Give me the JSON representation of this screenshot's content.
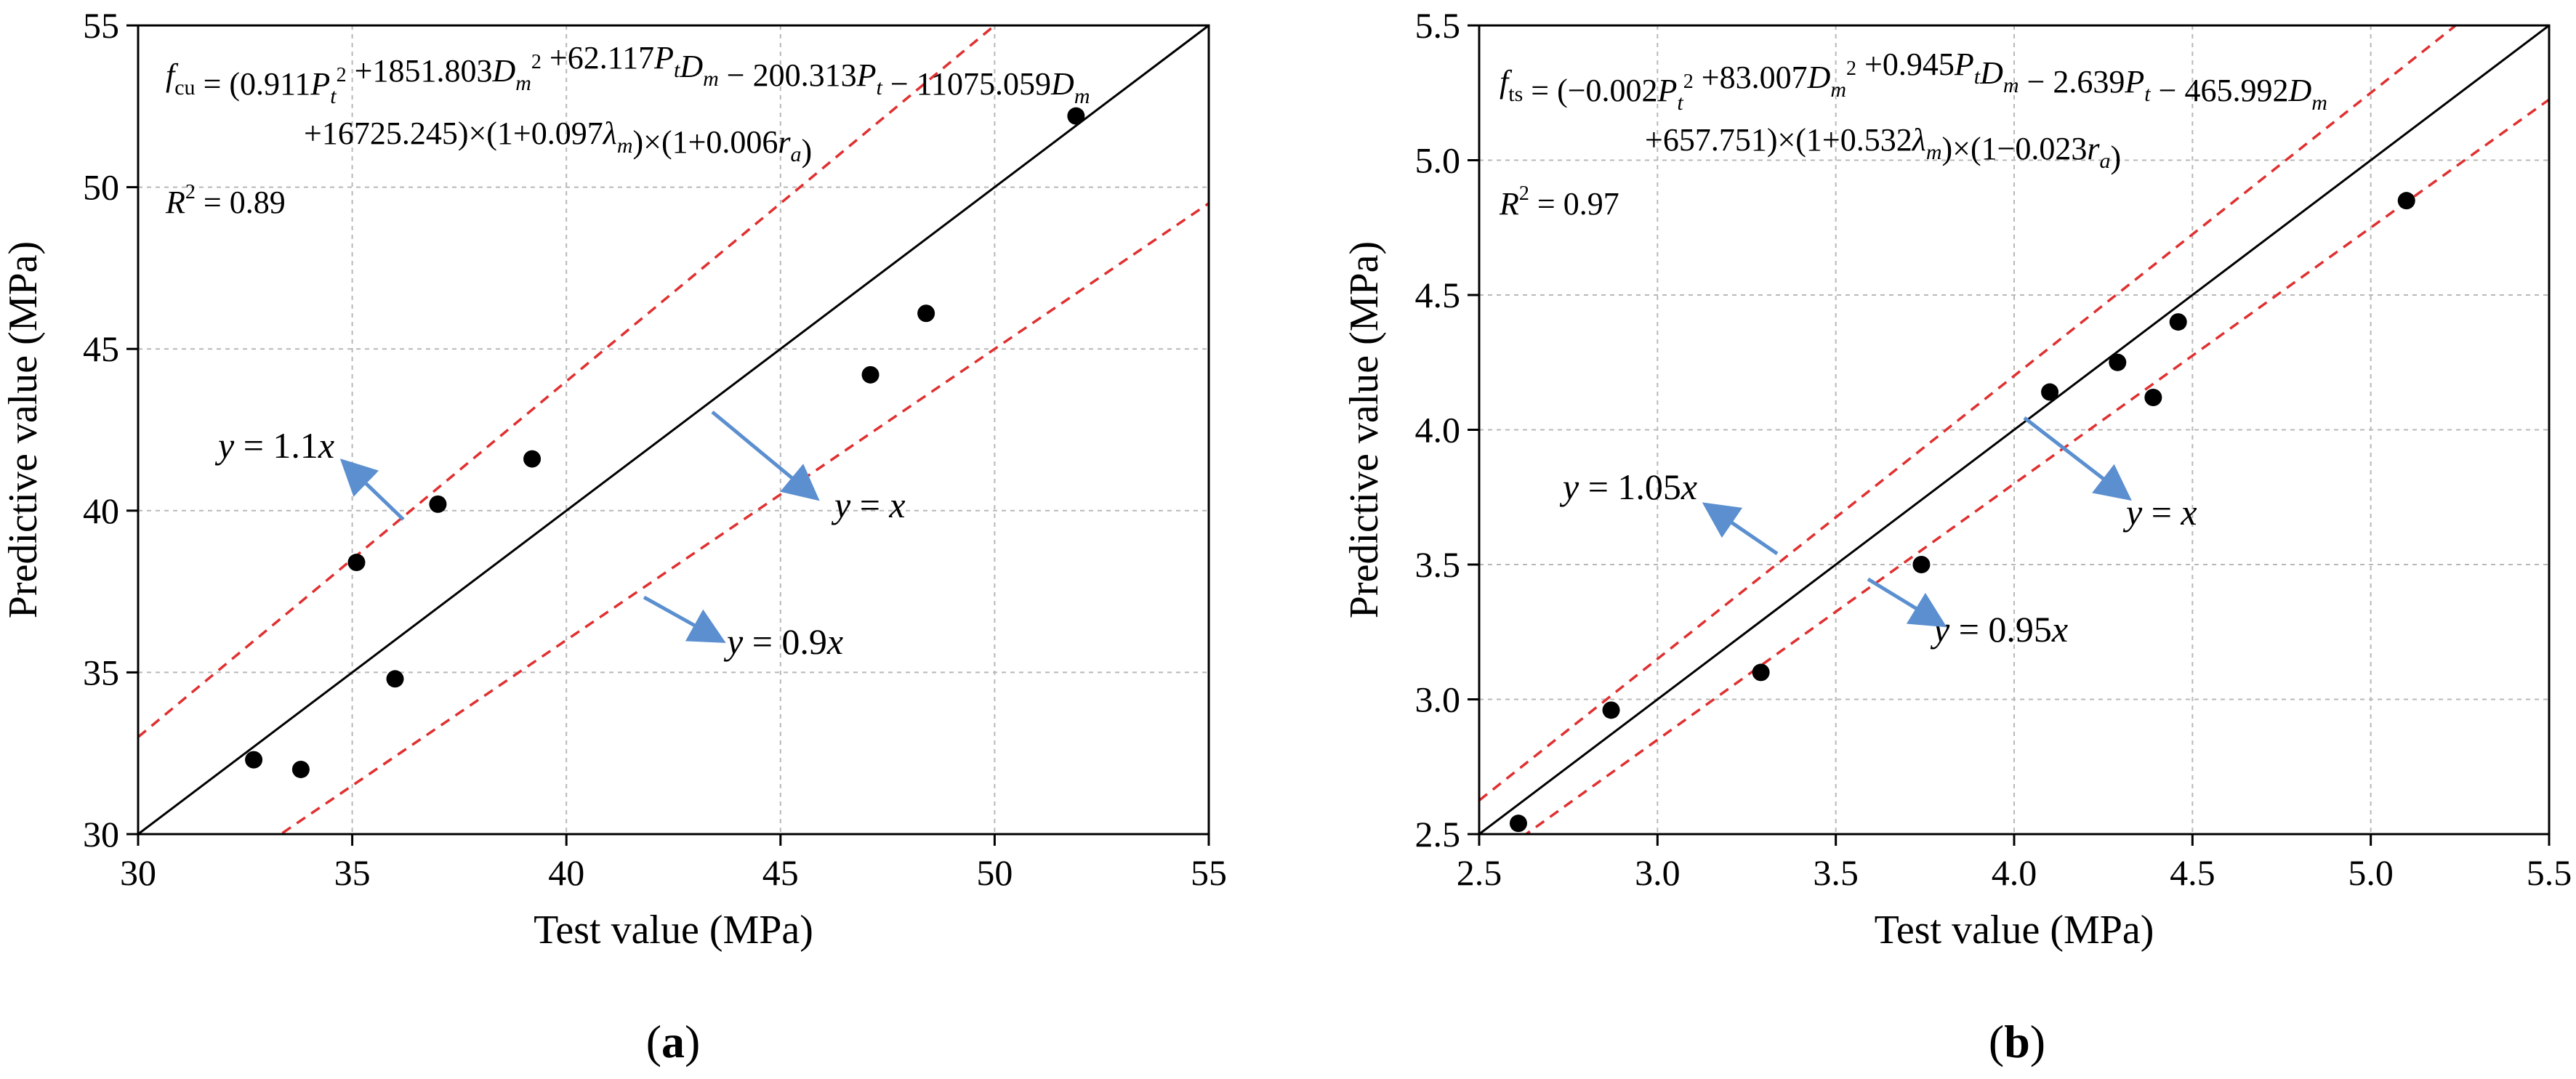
{
  "chart_data": [
    {
      "id": "a",
      "type": "scatter",
      "panel_label": "(a)",
      "panel_label_letter": "a",
      "xlabel": "Test value (MPa)",
      "ylabel": "Predictive value (MPa)",
      "xlim": [
        30,
        55
      ],
      "ylim": [
        30,
        55
      ],
      "xticks": [
        30,
        35,
        40,
        45,
        50,
        55
      ],
      "yticks": [
        30,
        35,
        40,
        45,
        50,
        55
      ],
      "grid": true,
      "points": [
        {
          "x": 32.7,
          "y": 32.3
        },
        {
          "x": 33.8,
          "y": 32.0
        },
        {
          "x": 35.1,
          "y": 38.4
        },
        {
          "x": 36.0,
          "y": 34.8
        },
        {
          "x": 37.0,
          "y": 40.2
        },
        {
          "x": 39.2,
          "y": 41.6
        },
        {
          "x": 47.1,
          "y": 44.2
        },
        {
          "x": 48.4,
          "y": 46.1
        },
        {
          "x": 51.9,
          "y": 52.2
        }
      ],
      "lines": [
        {
          "name": "y = x",
          "slope": 1.0,
          "style": "solid",
          "color": "#000000"
        },
        {
          "name": "y = 1.1x",
          "slope": 1.1,
          "style": "dashed",
          "color": "#e03030"
        },
        {
          "name": "y = 0.9x",
          "slope": 0.9,
          "style": "dashed",
          "color": "#e03030"
        }
      ],
      "annotations": {
        "upper": {
          "y": "y",
          "eq": " = 1.1",
          "x": "x"
        },
        "identity": {
          "y": "y",
          "eq": " = ",
          "x": "x"
        },
        "lower": {
          "y": "y",
          "eq": " = 0.9",
          "x": "x"
        }
      },
      "arrow_color": "#5b8fd0",
      "equation": {
        "f": "f",
        "f_sub": "cu",
        "line1": [
          {
            "t": " = (0.911"
          },
          {
            "t": "P",
            "i": true
          },
          {
            "t": "t",
            "sub": true,
            "i": true
          },
          {
            "t": "2",
            "sup": true
          },
          {
            "t": " +1851.803"
          },
          {
            "t": "D",
            "i": true
          },
          {
            "t": "m",
            "sub": true,
            "i": true
          },
          {
            "t": "2",
            "sup": true
          },
          {
            "t": " +62.117"
          },
          {
            "t": "P",
            "i": true
          },
          {
            "t": "t",
            "sub": true,
            "i": true
          },
          {
            "t": "D",
            "i": true
          },
          {
            "t": "m",
            "sub": true,
            "i": true
          },
          {
            "t": " − 200.313"
          },
          {
            "t": "P",
            "i": true
          },
          {
            "t": "t",
            "sub": true,
            "i": true
          },
          {
            "t": " − 11075.059"
          },
          {
            "t": "D",
            "i": true
          },
          {
            "t": "m",
            "sub": true,
            "i": true
          }
        ],
        "line2": [
          {
            "t": "+16725.245)×(1+0.097"
          },
          {
            "t": "λ",
            "i": true
          },
          {
            "t": "m",
            "sub": true,
            "i": true
          },
          {
            "t": ")×(1+0.006"
          },
          {
            "t": "r",
            "i": true
          },
          {
            "t": "a",
            "sub": true,
            "i": true
          },
          {
            "t": ")"
          }
        ]
      },
      "r2": {
        "label": "R",
        "sup": "2",
        "value": " = 0.89"
      }
    },
    {
      "id": "b",
      "type": "scatter",
      "panel_label": "(b)",
      "panel_label_letter": "b",
      "xlabel": "Test value (MPa)",
      "ylabel": "Predictive value (MPa)",
      "xlim": [
        2.5,
        5.5
      ],
      "ylim": [
        2.5,
        5.5
      ],
      "xticks": [
        "2.5",
        "3.0",
        "3.5",
        "4.0",
        "4.5",
        "5.0",
        "5.5"
      ],
      "yticks": [
        "2.5",
        "3.0",
        "3.5",
        "4.0",
        "4.5",
        "5.0",
        "5.5"
      ],
      "grid": true,
      "points": [
        {
          "x": 2.61,
          "y": 2.54
        },
        {
          "x": 2.87,
          "y": 2.96
        },
        {
          "x": 3.29,
          "y": 3.1
        },
        {
          "x": 3.74,
          "y": 3.5
        },
        {
          "x": 4.1,
          "y": 4.14
        },
        {
          "x": 4.29,
          "y": 4.25
        },
        {
          "x": 4.39,
          "y": 4.12
        },
        {
          "x": 4.46,
          "y": 4.4
        },
        {
          "x": 5.1,
          "y": 4.85
        }
      ],
      "lines": [
        {
          "name": "y = x",
          "slope": 1.0,
          "style": "solid",
          "color": "#000000"
        },
        {
          "name": "y = 1.05x",
          "slope": 1.05,
          "style": "dashed",
          "color": "#e03030"
        },
        {
          "name": "y = 0.95x",
          "slope": 0.95,
          "style": "dashed",
          "color": "#e03030"
        }
      ],
      "annotations": {
        "upper": {
          "y": "y",
          "eq": " = 1.05",
          "x": "x"
        },
        "identity": {
          "y": "y",
          "eq": " = ",
          "x": "x"
        },
        "lower": {
          "y": "y",
          "eq": " = 0.95",
          "x": "x"
        }
      },
      "arrow_color": "#5b8fd0",
      "equation": {
        "f": "f",
        "f_sub": "ts",
        "line1": [
          {
            "t": " = (−0.002"
          },
          {
            "t": "P",
            "i": true
          },
          {
            "t": "t",
            "sub": true,
            "i": true
          },
          {
            "t": "2",
            "sup": true
          },
          {
            "t": " +83.007"
          },
          {
            "t": "D",
            "i": true
          },
          {
            "t": "m",
            "sub": true,
            "i": true
          },
          {
            "t": "2",
            "sup": true
          },
          {
            "t": " +0.945"
          },
          {
            "t": "P",
            "i": true
          },
          {
            "t": "t",
            "sub": true,
            "i": true
          },
          {
            "t": "D",
            "i": true
          },
          {
            "t": "m",
            "sub": true,
            "i": true
          },
          {
            "t": " − 2.639"
          },
          {
            "t": "P",
            "i": true
          },
          {
            "t": "t",
            "sub": true,
            "i": true
          },
          {
            "t": " − 465.992"
          },
          {
            "t": "D",
            "i": true
          },
          {
            "t": "m",
            "sub": true,
            "i": true
          }
        ],
        "line2": [
          {
            "t": "+657.751)×(1+0.532"
          },
          {
            "t": "λ",
            "i": true
          },
          {
            "t": "m",
            "sub": true,
            "i": true
          },
          {
            "t": ")×(1−0.023"
          },
          {
            "t": "r",
            "i": true
          },
          {
            "t": "a",
            "sub": true,
            "i": true
          },
          {
            "t": ")"
          }
        ]
      },
      "r2": {
        "label": "R",
        "sup": "2",
        "value": " = 0.97"
      }
    }
  ]
}
